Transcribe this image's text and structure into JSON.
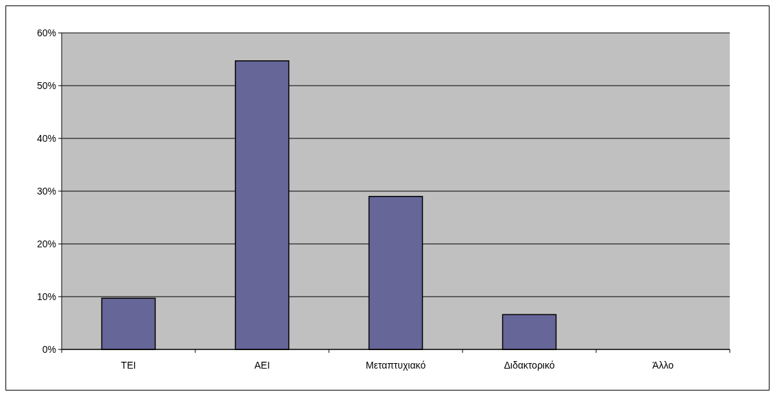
{
  "chart_data": {
    "type": "bar",
    "categories": [
      "ΤΕΙ",
      "ΑΕΙ",
      "Μεταπτυχιακό",
      "Διδακτορικό",
      "Άλλο"
    ],
    "values": [
      9.7,
      54.7,
      29,
      6.6,
      0
    ],
    "color": "#666699",
    "ylim": [
      0,
      60
    ],
    "yticks": [
      {
        "value": 0,
        "label": "0%"
      },
      {
        "value": 10,
        "label": "10%"
      },
      {
        "value": 20,
        "label": "20%"
      },
      {
        "value": 30,
        "label": "30%"
      },
      {
        "value": 40,
        "label": "40%"
      },
      {
        "value": 50,
        "label": "50%"
      },
      {
        "value": 60,
        "label": "60%"
      }
    ],
    "grid": "y"
  }
}
